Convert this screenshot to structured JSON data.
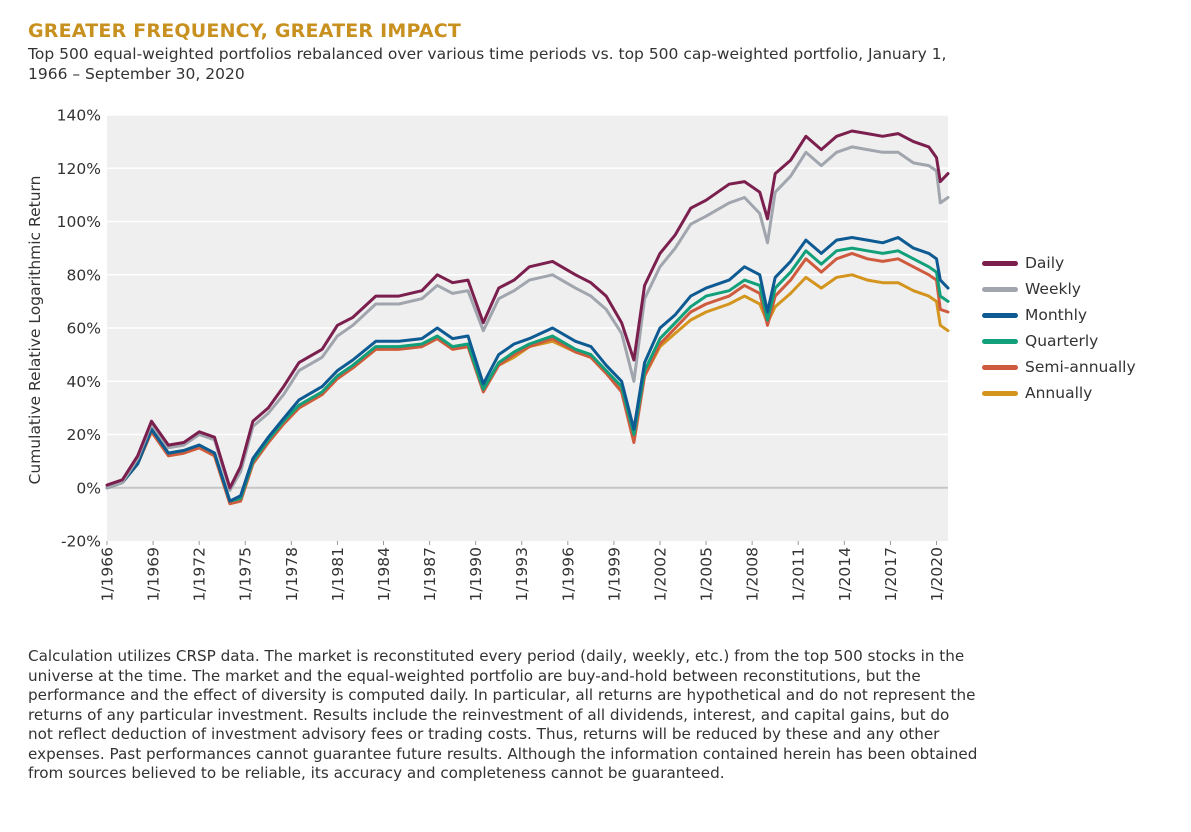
{
  "header": {
    "title": "GREATER FREQUENCY, GREATER IMPACT",
    "subtitle": "Top 500 equal-weighted portfolios rebalanced over various time periods vs. top 500 cap-weighted portfolio, January 1, 1966 – September 30, 2020"
  },
  "colors": {
    "title": "#C8901E",
    "plot_bg": "#EFEFEF",
    "gridline": "#FFFFFF",
    "zeroline": "#C6C6C6",
    "text": "#333333"
  },
  "chart_data": {
    "type": "line",
    "ylabel": "Cumulative Relative Logarithmic Return",
    "xlabel": "",
    "ylim": [
      -20,
      140
    ],
    "y_ticks": [
      140,
      120,
      100,
      80,
      60,
      40,
      20,
      0,
      -20
    ],
    "y_tick_labels": [
      "140%",
      "120%",
      "100%",
      "80%",
      "60%",
      "40%",
      "20%",
      "0%",
      "-20%"
    ],
    "xlim": [
      1966.0,
      2020.75
    ],
    "x_ticks": [
      1966,
      1969,
      1972,
      1975,
      1978,
      1981,
      1984,
      1987,
      1990,
      1993,
      1996,
      1999,
      2002,
      2005,
      2008,
      2011,
      2014,
      2017,
      2020
    ],
    "x_tick_labels": [
      "1/1966",
      "1/1969",
      "1/1972",
      "1/1975",
      "1/1978",
      "1/1981",
      "1/1984",
      "1/1987",
      "1/1990",
      "1/1993",
      "1/1996",
      "1/1999",
      "1/2002",
      "1/2005",
      "1/2008",
      "1/2011",
      "1/2014",
      "1/2017",
      "1/2020"
    ],
    "x": [
      1966.0,
      1967.0,
      1968.0,
      1968.9,
      1970.0,
      1971.0,
      1972.0,
      1973.0,
      1974.0,
      1974.7,
      1975.5,
      1976.5,
      1977.5,
      1978.5,
      1980.0,
      1981.0,
      1982.0,
      1983.5,
      1985.0,
      1986.5,
      1987.5,
      1988.5,
      1989.5,
      1990.5,
      1991.5,
      1992.5,
      1993.5,
      1995.0,
      1996.5,
      1997.5,
      1998.5,
      1999.5,
      2000.3,
      2001.0,
      2002.0,
      2003.0,
      2004.0,
      2005.0,
      2006.5,
      2007.5,
      2008.5,
      2009.0,
      2009.5,
      2010.5,
      2011.5,
      2012.5,
      2013.5,
      2014.5,
      2015.5,
      2016.5,
      2017.5,
      2018.5,
      2019.5,
      2020.0,
      2020.25,
      2020.75
    ],
    "series": [
      {
        "name": "Daily",
        "color": "#7B1F4E",
        "values": [
          1,
          3,
          12,
          25,
          16,
          17,
          21,
          19,
          0,
          8,
          25,
          30,
          38,
          47,
          52,
          61,
          64,
          72,
          72,
          74,
          80,
          77,
          78,
          62,
          75,
          78,
          83,
          85,
          80,
          77,
          72,
          62,
          48,
          76,
          88,
          95,
          105,
          108,
          114,
          115,
          111,
          101,
          118,
          123,
          132,
          127,
          132,
          134,
          133,
          132,
          133,
          130,
          128,
          124,
          115,
          118
        ]
      },
      {
        "name": "Weekly",
        "color": "#A0A5AE",
        "values": [
          0,
          2,
          11,
          24,
          15,
          16,
          20,
          18,
          -1,
          6,
          23,
          28,
          35,
          44,
          49,
          57,
          61,
          69,
          69,
          71,
          76,
          73,
          74,
          59,
          71,
          74,
          78,
          80,
          75,
          72,
          67,
          58,
          40,
          71,
          83,
          90,
          99,
          102,
          107,
          109,
          103,
          92,
          111,
          117,
          126,
          121,
          126,
          128,
          127,
          126,
          126,
          122,
          121,
          119,
          107,
          109
        ]
      },
      {
        "name": "Monthly",
        "color": "#0E5A92",
        "values": [
          0,
          2,
          9,
          22,
          13,
          14,
          16,
          13,
          -5,
          -3,
          11,
          19,
          26,
          33,
          38,
          44,
          48,
          55,
          55,
          56,
          60,
          56,
          57,
          39,
          50,
          54,
          56,
          60,
          55,
          53,
          46,
          40,
          22,
          47,
          60,
          65,
          72,
          75,
          78,
          83,
          80,
          66,
          79,
          85,
          93,
          88,
          93,
          94,
          93,
          92,
          94,
          90,
          88,
          86,
          78,
          75
        ]
      },
      {
        "name": "Quarterly",
        "color": "#12A07A",
        "values": [
          0,
          2,
          9,
          22,
          13,
          14,
          16,
          13,
          -5,
          -4,
          10,
          18,
          25,
          31,
          36,
          42,
          46,
          53,
          53,
          54,
          57,
          53,
          54,
          37,
          47,
          51,
          54,
          57,
          52,
          50,
          44,
          38,
          20,
          44,
          56,
          62,
          68,
          72,
          74,
          78,
          76,
          63,
          75,
          81,
          89,
          84,
          89,
          90,
          89,
          88,
          89,
          86,
          83,
          81,
          72,
          70
        ]
      },
      {
        "name": "Semi-annually",
        "color": "#CF5B3F",
        "values": [
          0,
          2,
          9,
          21,
          12,
          13,
          15,
          12,
          -6,
          -5,
          9,
          17,
          24,
          30,
          35,
          41,
          45,
          52,
          52,
          53,
          56,
          52,
          53,
          36,
          46,
          50,
          53,
          56,
          51,
          49,
          43,
          36,
          17,
          42,
          54,
          60,
          66,
          69,
          72,
          76,
          73,
          61,
          72,
          78,
          86,
          81,
          86,
          88,
          86,
          85,
          86,
          83,
          80,
          78,
          67,
          66
        ]
      },
      {
        "name": "Annually",
        "color": "#D4951F",
        "values": [
          0,
          2,
          9,
          21,
          12,
          13,
          15,
          12,
          -6,
          -5,
          9,
          17,
          24,
          30,
          35,
          41,
          45,
          52,
          52,
          53,
          56,
          52,
          53,
          37,
          46,
          49,
          53,
          55,
          51,
          49,
          43,
          37,
          19,
          42,
          53,
          58,
          63,
          66,
          69,
          72,
          69,
          62,
          68,
          73,
          79,
          75,
          79,
          80,
          78,
          77,
          77,
          74,
          72,
          70,
          61,
          59
        ]
      }
    ]
  },
  "footnote": "Calculation utilizes CRSP data. The market is reconstituted every period (daily, weekly, etc.) from the top 500 stocks in the universe at the time. The market and the equal-weighted portfolio are buy-and-hold between reconstitutions, but the performance and the effect of diversity is computed daily. In particular, all returns are hypothetical and do not represent the returns of any particular investment. Results include the reinvestment of all dividends, interest, and capital gains, but do not reflect deduction of investment advisory fees or trading costs. Thus, returns will be reduced by these and any other expenses. Past performances cannot guarantee future results. Although the information contained herein has been obtained from sources believed to be reliable, its accuracy and completeness cannot be guaranteed."
}
